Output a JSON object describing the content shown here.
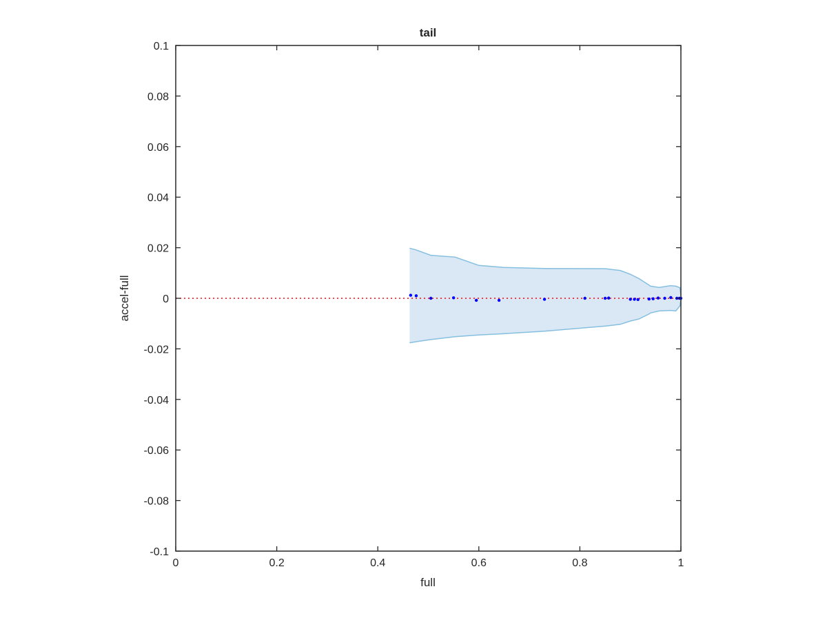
{
  "chart_data": {
    "type": "area",
    "title": "tail",
    "xlabel": "full",
    "ylabel": "accel-full",
    "xlim": [
      0,
      1
    ],
    "ylim": [
      -0.1,
      0.1
    ],
    "xticks": [
      0,
      0.2,
      0.4,
      0.6,
      0.8,
      1
    ],
    "xtick_labels": [
      "0",
      "0.2",
      "0.4",
      "0.6",
      "0.8",
      "1"
    ],
    "yticks": [
      -0.1,
      -0.08,
      -0.06,
      -0.04,
      -0.02,
      0,
      0.02,
      0.04,
      0.06,
      0.08,
      0.1
    ],
    "ytick_labels": [
      "-0.1",
      "-0.08",
      "-0.06",
      "-0.04",
      "-0.02",
      "0",
      "0.02",
      "0.04",
      "0.06",
      "0.08",
      "0.1"
    ],
    "grid": false,
    "band": {
      "color": "#d9e8f4",
      "edge_color": "#85bfe0",
      "x": [
        0.463,
        0.475,
        0.505,
        0.553,
        0.6,
        0.65,
        0.73,
        0.85,
        0.88,
        0.9,
        0.917,
        0.937,
        0.94,
        0.957,
        0.98,
        0.99,
        0.998,
        1.0
      ],
      "upper": [
        0.0198,
        0.0192,
        0.017,
        0.0163,
        0.013,
        0.0122,
        0.0118,
        0.0117,
        0.011,
        0.0095,
        0.0078,
        0.0052,
        0.0048,
        0.0043,
        0.005,
        0.0048,
        0.0042,
        0.001
      ],
      "lower": [
        -0.0176,
        -0.0172,
        -0.0163,
        -0.0152,
        -0.0145,
        -0.014,
        -0.013,
        -0.011,
        -0.0103,
        -0.009,
        -0.0082,
        -0.0062,
        -0.0058,
        -0.005,
        -0.0048,
        -0.005,
        -0.003,
        -0.0005
      ]
    },
    "reference_line": {
      "y": 0,
      "color": "#ff0000",
      "style": "dotted"
    },
    "points": {
      "color": "#0000ff",
      "x": [
        0.465,
        0.476,
        0.505,
        0.55,
        0.595,
        0.64,
        0.73,
        0.81,
        0.85,
        0.857,
        0.9,
        0.908,
        0.915,
        0.937,
        0.945,
        0.955,
        0.968,
        0.98,
        0.992,
        0.997,
        1.0
      ],
      "y": [
        0.0012,
        0.001,
        0.0,
        0.0002,
        -0.0008,
        -0.0008,
        -0.0004,
        0.0,
        0.0,
        0.0001,
        -0.0004,
        -0.0004,
        -0.0005,
        -0.0003,
        -0.0002,
        0.0001,
        0.0,
        0.0003,
        0.0,
        0.0,
        0.0
      ]
    }
  }
}
